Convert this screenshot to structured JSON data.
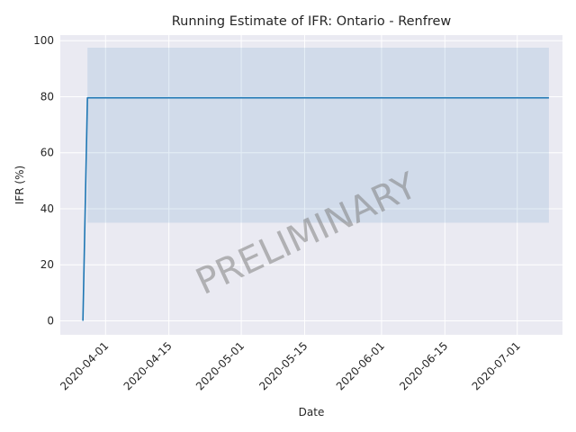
{
  "chart_data": {
    "type": "line",
    "title": "Running Estimate of IFR: Ontario - Renfrew",
    "xlabel": "Date",
    "ylabel": "IFR (%)",
    "watermark": "PRELIMINARY",
    "xlim": [
      "2020-03-22",
      "2020-07-11"
    ],
    "ylim": [
      -5,
      102
    ],
    "grid": true,
    "x_ticks": [
      "2020-04-01",
      "2020-04-15",
      "2020-05-01",
      "2020-05-15",
      "2020-06-01",
      "2020-06-15",
      "2020-07-01"
    ],
    "y_ticks": [
      0,
      20,
      40,
      60,
      80,
      100
    ],
    "series": [
      {
        "x": [
          "2020-03-27",
          "2020-03-28",
          "2020-07-08"
        ],
        "values": [
          0,
          79.6,
          79.6
        ],
        "color": "#1f77b4"
      }
    ],
    "band": {
      "x": [
        "2020-03-28",
        "2020-07-08"
      ],
      "lower": [
        35,
        35
      ],
      "upper": [
        97.5,
        97.5
      ],
      "color": "#1f77b4"
    },
    "style": {
      "background": "#eaeaf2",
      "grid_color": "#ffffff",
      "band_opacity": 0.12
    }
  }
}
